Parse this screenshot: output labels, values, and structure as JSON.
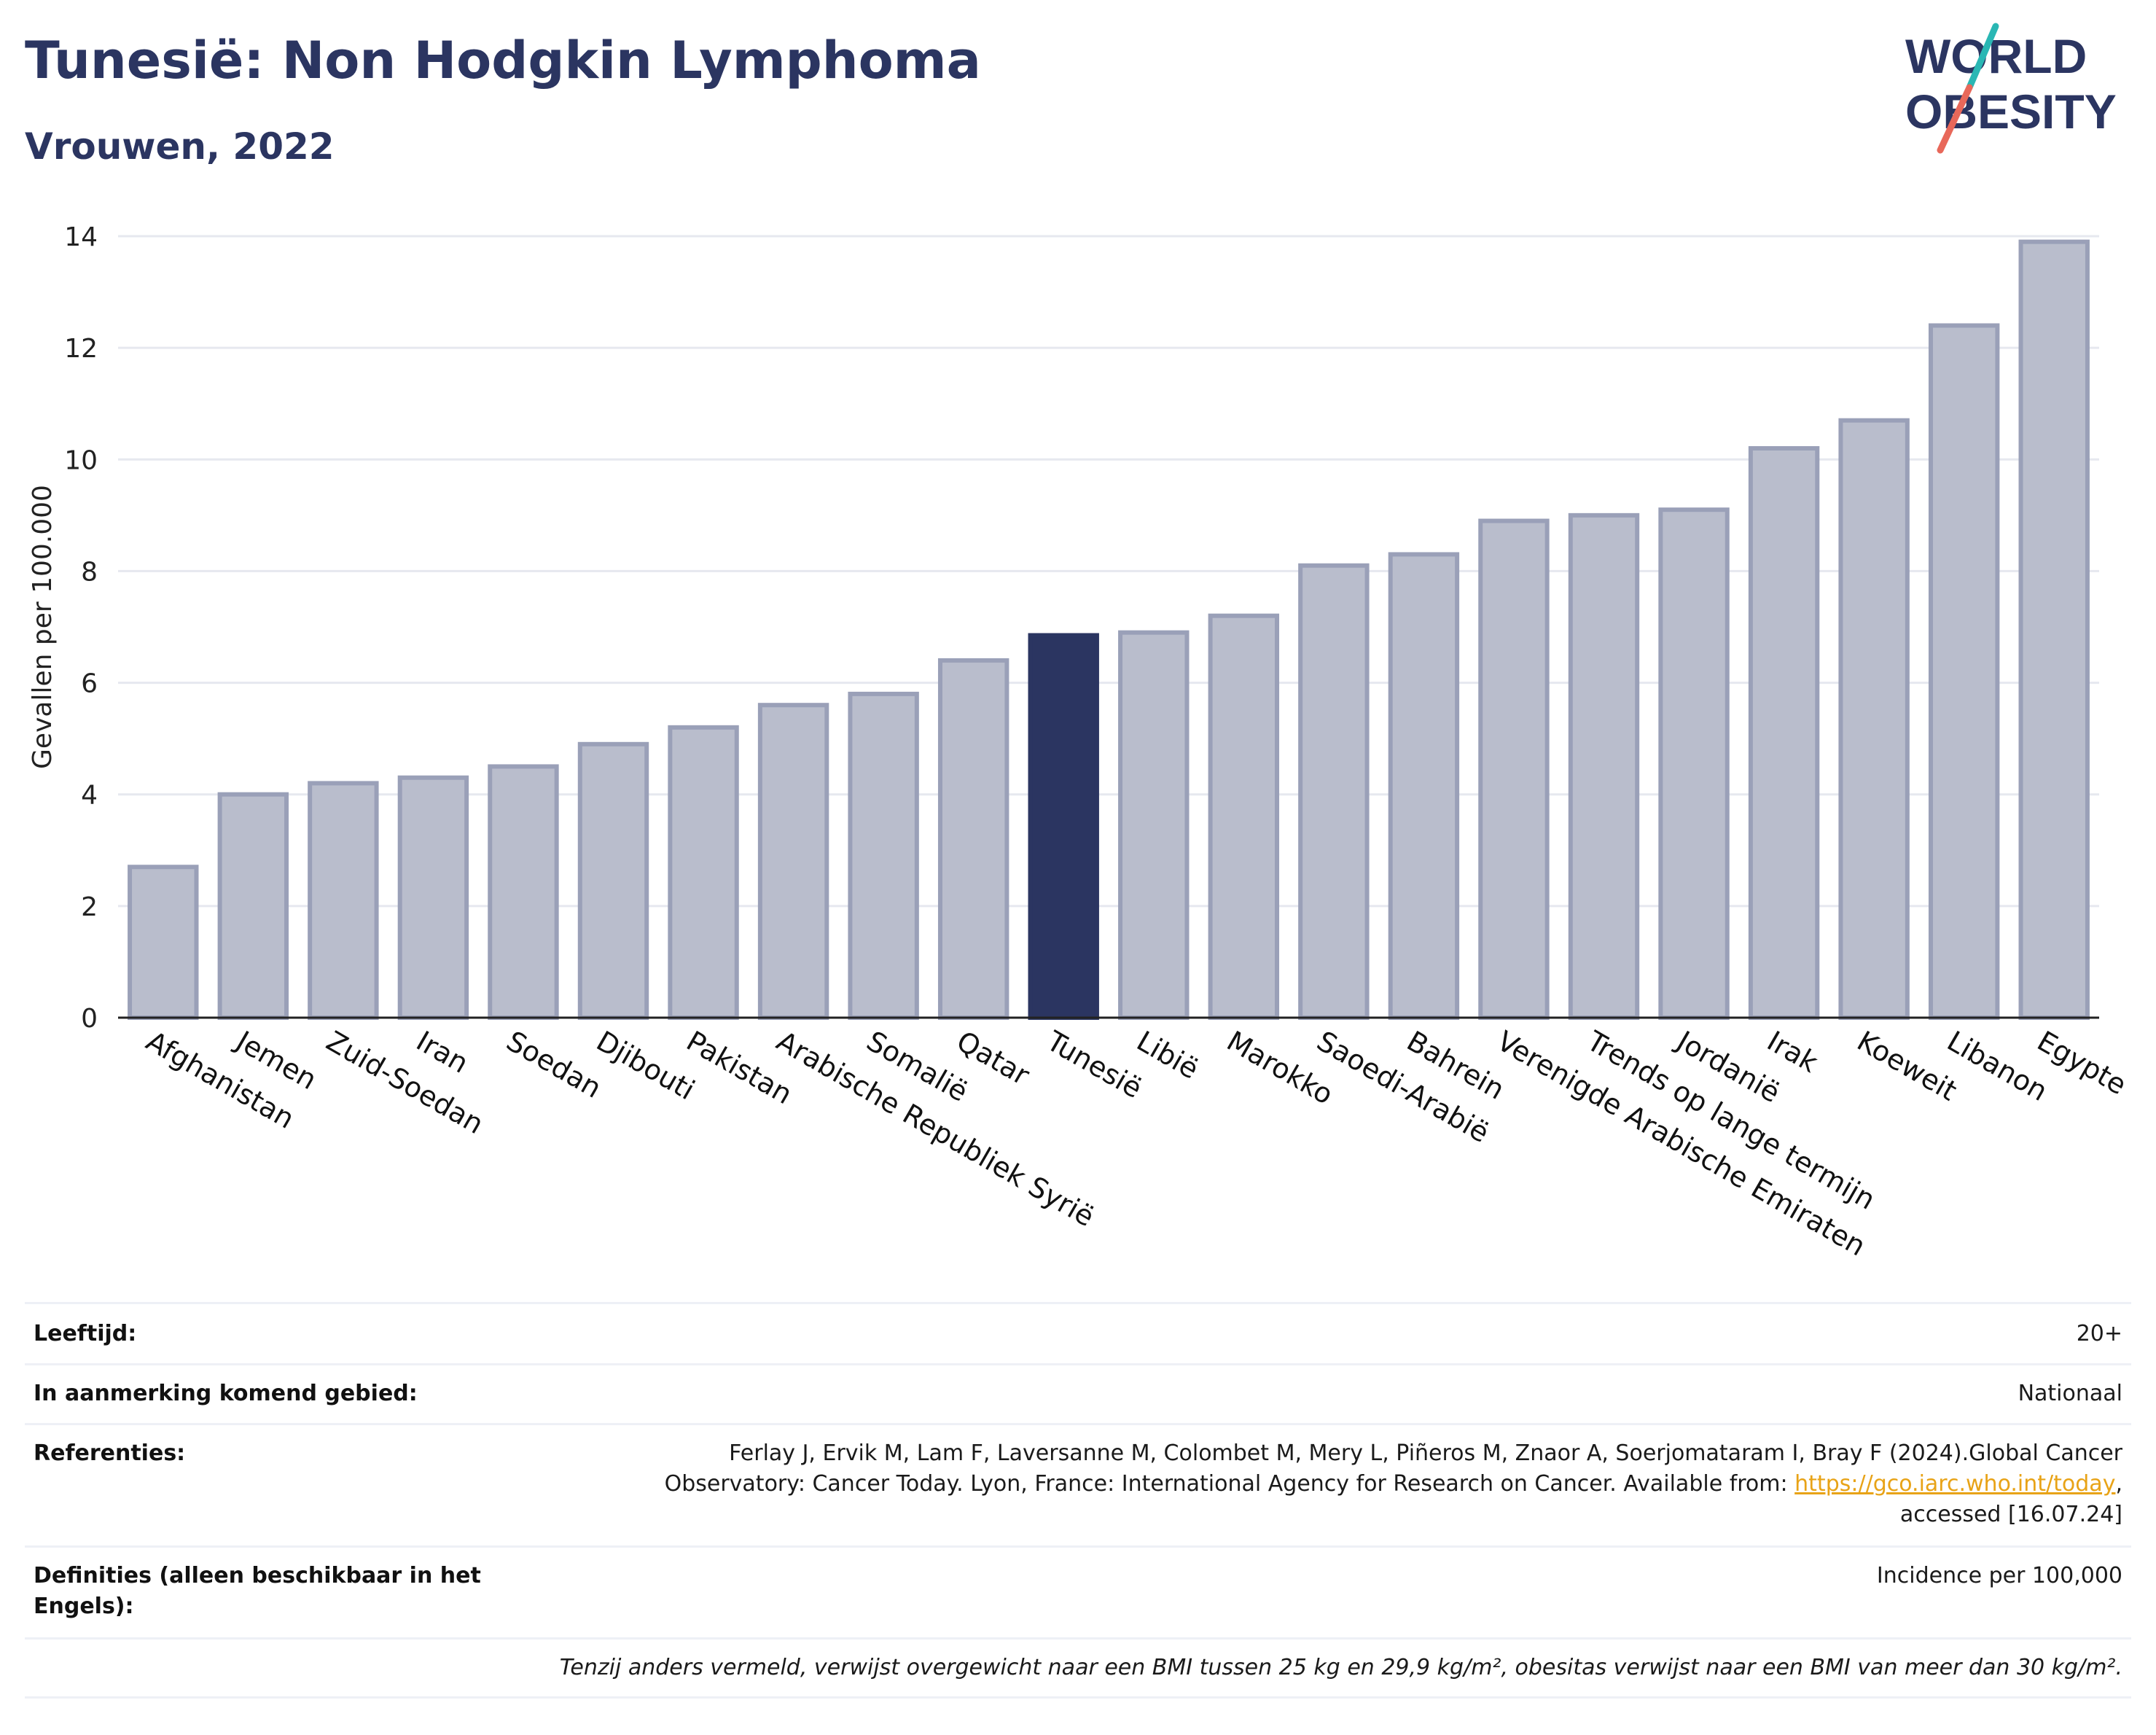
{
  "title": "Tunesië: Non Hodgkin Lymphoma",
  "subtitle": "Vrouwen, 2022",
  "logo": {
    "line1": "WORLD",
    "line2": "OBESITY",
    "accent_teal": "#2ab7b4",
    "accent_red": "#e8685a",
    "text_color": "#2b3561"
  },
  "chart_data": {
    "type": "bar",
    "ylabel": "Gevallen per 100.000",
    "ylim": [
      0,
      14
    ],
    "yticks": [
      0,
      2,
      4,
      6,
      8,
      10,
      12,
      14
    ],
    "grid": true,
    "highlight": "Tunesië",
    "colors": {
      "bar": "#b9bdcc",
      "bar_edge": "#9aa0b8",
      "highlight": "#2b3561"
    },
    "categories": [
      "Afghanistan",
      "Jemen",
      "Zuid-Soedan",
      "Iran",
      "Soedan",
      "Djibouti",
      "Pakistan",
      "Arabische Republiek Syrië",
      "Somalië",
      "Qatar",
      "Tunesië",
      "Libië",
      "Marokko",
      "Saoedi-Arabië",
      "Bahrein",
      "Verenigde Arabische Emiraten",
      "Trends op lange termijn",
      "Jordanië",
      "Irak",
      "Koeweit",
      "Libanon",
      "Egypte"
    ],
    "values": [
      2.7,
      4.0,
      4.2,
      4.3,
      4.5,
      4.9,
      5.2,
      5.6,
      5.8,
      6.4,
      6.85,
      6.9,
      7.2,
      8.1,
      8.3,
      8.9,
      9.0,
      9.1,
      10.2,
      10.7,
      12.4,
      13.9
    ]
  },
  "footer": {
    "age_label": "Leeftijd:",
    "age_value": "20+",
    "area_label": "In aanmerking komend gebied:",
    "area_value": "Nationaal",
    "ref_label": "Referenties:",
    "ref_line1": "Ferlay J, Ervik M, Lam F, Laversanne M, Colombet M, Mery L, Piñeros M, Znaor A, Soerjomataram I, Bray F (2024).Global Cancer",
    "ref_line2": "Observatory: Cancer Today. Lyon, France: International Agency for Research on Cancer. Available from: ",
    "ref_link": "https://gco.iarc.who.int/today",
    "ref_line2_end": ",",
    "ref_line3": "accessed [16.07.24]",
    "def_label": "Definities (alleen beschikbaar in het Engels):",
    "def_value": "Incidence per 100,000",
    "note": "Tenzij anders vermeld, verwijst overgewicht naar een BMI tussen 25 kg en 29,9 kg/m², obesitas verwijst naar een BMI van meer dan 30 kg/m²."
  }
}
